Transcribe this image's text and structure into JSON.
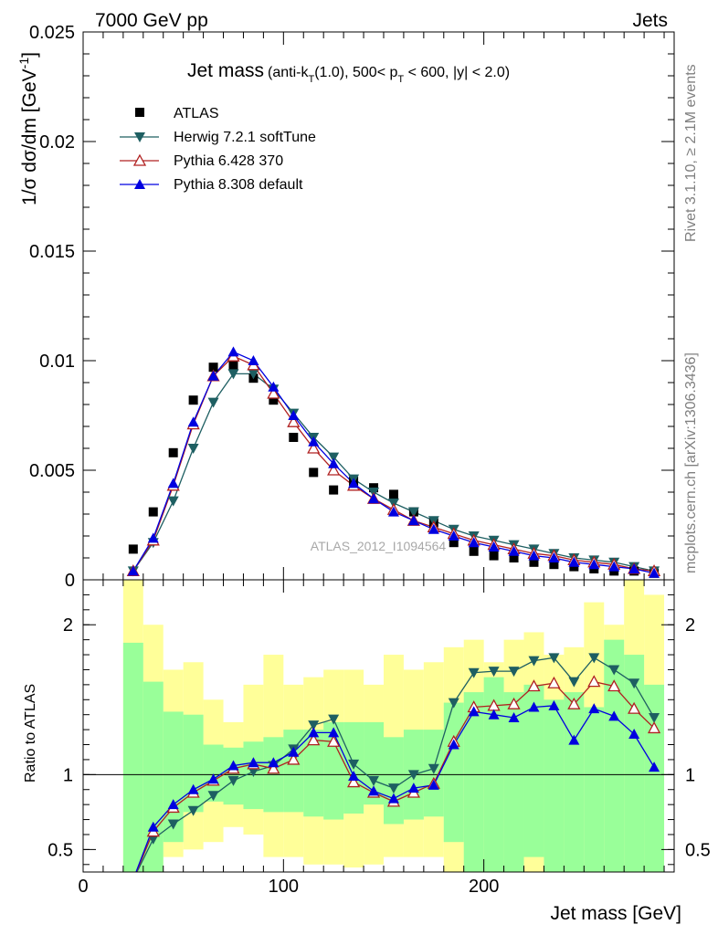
{
  "header": {
    "left": "7000 GeV pp",
    "right": "Jets",
    "side_top": "Rivet 3.1.10, ≥ 2.1M events",
    "side_bottom": "mcplots.cern.ch [arXiv:1306.3436]"
  },
  "chart_data": [
    {
      "type": "scatter",
      "title_main": "Jet mass",
      "title_detail": "(anti-k T(1.0), 500< p T < 600, |y| < 2.0)",
      "title_text": {
        "t1": "(anti-k",
        "s1": "T",
        "t2": "(1.0), 500< p",
        "s2": "T",
        "t3": " < 600, |y| < 2.0)"
      },
      "ylabel": "1/σ dσ/dm [GeV",
      "ylabel_exp": "-1",
      "ylabel_close": "]",
      "watermark": "ATLAS_2012_I1094564",
      "xlim": [
        0,
        295
      ],
      "ylim": [
        0,
        0.025
      ],
      "y_ticks": [
        {
          "v": 0,
          "label": "0"
        },
        {
          "v": 0.005,
          "label": "0.005"
        },
        {
          "v": 0.01,
          "label": "0.01"
        },
        {
          "v": 0.015,
          "label": "0.015"
        },
        {
          "v": 0.02,
          "label": "0.02"
        },
        {
          "v": 0.025,
          "label": "0.025"
        }
      ],
      "x": [
        25,
        35,
        45,
        55,
        65,
        75,
        85,
        95,
        105,
        115,
        125,
        135,
        145,
        155,
        165,
        175,
        185,
        195,
        205,
        215,
        225,
        235,
        245,
        255,
        265,
        275,
        285
      ],
      "series": [
        {
          "name": "ATLAS",
          "marker": "square",
          "color": "#000000",
          "values": [
            0.0014,
            0.0031,
            0.0058,
            0.0082,
            0.0097,
            0.0098,
            0.0092,
            0.0082,
            0.0065,
            0.0049,
            0.0041,
            0.0045,
            0.0042,
            0.0039,
            0.0031,
            0.0026,
            0.0017,
            0.0013,
            0.0011,
            0.001,
            0.0008,
            0.0007,
            0.0006,
            0.0005,
            0.0004,
            0.0004,
            0.0003
          ]
        },
        {
          "name": "Herwig 7.2.1 softTune",
          "marker": "triangle-down",
          "color": "#1e5f62",
          "values": [
            0.0004,
            0.0017,
            0.0036,
            0.006,
            0.0081,
            0.0094,
            0.0094,
            0.0087,
            0.0076,
            0.0065,
            0.0056,
            0.0046,
            0.004,
            0.0035,
            0.0031,
            0.0027,
            0.0023,
            0.002,
            0.0018,
            0.0016,
            0.0014,
            0.0012,
            0.001,
            0.0009,
            0.0008,
            0.0006,
            0.0004
          ]
        },
        {
          "name": "Pythia 6.428 370",
          "marker": "triangle-up-open",
          "color": "#b02020",
          "values": [
            0.0004,
            0.0018,
            0.0043,
            0.0071,
            0.0093,
            0.0102,
            0.0098,
            0.0085,
            0.0072,
            0.006,
            0.005,
            0.0043,
            0.0037,
            0.0032,
            0.0027,
            0.0024,
            0.0021,
            0.0018,
            0.0016,
            0.0014,
            0.0012,
            0.0011,
            0.0009,
            0.0008,
            0.0007,
            0.0005,
            0.0004
          ]
        },
        {
          "name": "Pythia 8.308 default",
          "marker": "triangle-up",
          "color": "#0000e0",
          "values": [
            0.0004,
            0.0019,
            0.0044,
            0.0072,
            0.0093,
            0.0104,
            0.01,
            0.0088,
            0.0075,
            0.0063,
            0.0053,
            0.0044,
            0.0037,
            0.0031,
            0.0027,
            0.0023,
            0.002,
            0.0017,
            0.0015,
            0.0013,
            0.0011,
            0.001,
            0.0008,
            0.0007,
            0.0006,
            0.0005,
            0.0003
          ]
        }
      ],
      "legend_position": "top-left",
      "grid": false
    },
    {
      "type": "line",
      "ylabel": "Ratio to ATLAS",
      "xlabel": "Jet mass [GeV]",
      "xlim": [
        0,
        295
      ],
      "ylim": [
        0.35,
        2.3
      ],
      "reference_line": 1,
      "x_ticks": [
        {
          "v": 0,
          "label": "0"
        },
        {
          "v": 100,
          "label": "100"
        },
        {
          "v": 200,
          "label": "200"
        }
      ],
      "y_ticks": [
        {
          "v": 0.5,
          "label": "0.5"
        },
        {
          "v": 1,
          "label": "1"
        },
        {
          "v": 2,
          "label": "2"
        }
      ],
      "x": [
        25,
        35,
        45,
        55,
        65,
        75,
        85,
        95,
        105,
        115,
        125,
        135,
        145,
        155,
        165,
        175,
        185,
        195,
        205,
        215,
        225,
        235,
        245,
        255,
        265,
        275,
        285
      ],
      "band_edges": [
        20,
        30,
        40,
        50,
        60,
        70,
        80,
        90,
        100,
        110,
        120,
        130,
        140,
        150,
        160,
        170,
        180,
        190,
        200,
        210,
        220,
        230,
        240,
        250,
        260,
        270,
        280,
        290
      ],
      "band_stat": {
        "color": "#99ff99",
        "lo": [
          0.35,
          0.35,
          0.55,
          0.75,
          0.82,
          0.8,
          0.77,
          0.75,
          0.75,
          0.72,
          0.7,
          0.74,
          0.8,
          0.67,
          0.7,
          0.72,
          0.55,
          0.35,
          0.35,
          0.35,
          0.45,
          0.35,
          0.35,
          0.35,
          0.35,
          0.35,
          0.35
        ],
        "hi": [
          1.88,
          1.62,
          1.42,
          1.4,
          1.2,
          1.18,
          1.22,
          1.25,
          1.3,
          1.3,
          1.35,
          1.35,
          1.35,
          1.25,
          1.3,
          1.3,
          1.48,
          1.55,
          1.65,
          1.55,
          1.6,
          1.5,
          1.55,
          1.45,
          1.9,
          1.8,
          1.6
        ]
      },
      "band_syst": {
        "color": "#ffff99",
        "lo": [
          0.35,
          0.35,
          0.45,
          0.5,
          0.55,
          0.65,
          0.6,
          0.45,
          0.45,
          0.4,
          0.4,
          0.38,
          0.4,
          0.45,
          0.45,
          0.45,
          0.35,
          0.35,
          0.35,
          0.35,
          0.35,
          0.35,
          0.35,
          0.35,
          0.35,
          0.35,
          0.35
        ],
        "hi": [
          2.3,
          2.0,
          1.7,
          1.75,
          1.5,
          1.35,
          1.6,
          1.8,
          1.6,
          1.65,
          1.7,
          1.7,
          1.6,
          1.8,
          1.7,
          1.75,
          1.85,
          1.9,
          1.75,
          1.9,
          1.95,
          1.8,
          1.85,
          2.15,
          2.0,
          2.3,
          2.2
        ]
      },
      "series": [
        {
          "name": "Herwig 7.2.1 softTune",
          "marker": "triangle-down",
          "color": "#1e5f62",
          "values": [
            0.3,
            0.57,
            0.67,
            0.76,
            0.86,
            0.96,
            1.02,
            1.06,
            1.17,
            1.33,
            1.37,
            1.07,
            0.96,
            0.91,
            1.0,
            1.04,
            1.48,
            1.68,
            1.69,
            1.69,
            1.76,
            1.78,
            1.62,
            1.78,
            1.7,
            1.61,
            1.38
          ]
        },
        {
          "name": "Pythia 6.428 370",
          "marker": "triangle-up-open",
          "color": "#b02020",
          "values": [
            0.3,
            0.62,
            0.78,
            0.88,
            0.96,
            1.04,
            1.07,
            1.04,
            1.1,
            1.23,
            1.22,
            0.95,
            0.88,
            0.82,
            0.88,
            0.94,
            1.22,
            1.45,
            1.46,
            1.47,
            1.59,
            1.61,
            1.47,
            1.62,
            1.59,
            1.44,
            1.31
          ]
        },
        {
          "name": "Pythia 8.308 default",
          "marker": "triangle-up",
          "color": "#0000e0",
          "values": [
            0.3,
            0.65,
            0.8,
            0.9,
            0.97,
            1.06,
            1.08,
            1.08,
            1.15,
            1.28,
            1.28,
            0.99,
            0.89,
            0.84,
            0.91,
            0.93,
            1.2,
            1.42,
            1.4,
            1.38,
            1.45,
            1.46,
            1.23,
            1.44,
            1.39,
            1.27,
            1.05
          ]
        }
      ]
    }
  ]
}
